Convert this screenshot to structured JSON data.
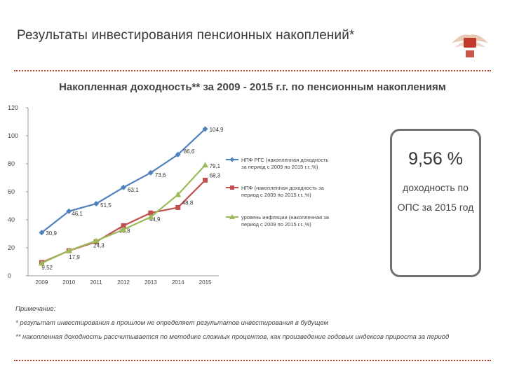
{
  "header": {
    "title": "Результаты инвестирования пенсионных накоплений*"
  },
  "chart_section": {
    "subtitle": "Накопленная доходность** за 2009 - 2015 г.г. по пенсионным накоплениям"
  },
  "callout": {
    "value": "9,56 %",
    "text": "доходность по ОПС за 2015 год"
  },
  "notes": {
    "heading": "Примечание:",
    "line1": "* результат инвестирования в прошлом не определяет результатов инвестирования в будущем",
    "line2": "** накопленная доходность рассчитывается по методике сложных процентов, как произведение годовых индексов прироста за период"
  },
  "colors": {
    "accent": "#c0392b",
    "series1": "#4f81bd",
    "series2": "#c0504d",
    "series3": "#9bbb59"
  },
  "chart_data": {
    "type": "line",
    "categories": [
      "2009",
      "2010",
      "2011",
      "2012",
      "2013",
      "2014",
      "2015"
    ],
    "ylim": [
      0,
      120
    ],
    "yticks": [
      "0",
      "20",
      "40",
      "60",
      "80",
      "100",
      "120"
    ],
    "grid": false,
    "legend_position": "right",
    "series": [
      {
        "name": "НПФ РГС (накопленная доходность за период с 2009 по 2015 г.г.,%)",
        "color": "#4f81bd",
        "marker": "diamond",
        "values": [
          30.9,
          46.1,
          51.5,
          63.1,
          73.6,
          86.6,
          104.9
        ],
        "labels": [
          "30,9",
          "46,1",
          "51,5",
          "63,1",
          "73,6",
          "86,6",
          "104,9"
        ]
      },
      {
        "name": "НПФ (накопленная доходность за период с 2009 по 2015 г.г.,%)",
        "color": "#c0504d",
        "marker": "square",
        "values": [
          9.52,
          17.9,
          24.3,
          35.8,
          44.9,
          48.8,
          68.3
        ],
        "labels": [
          "9,52",
          "17,9",
          "24,3",
          "35,8",
          "44,9",
          "48,8",
          "68,3"
        ]
      },
      {
        "name": "уровень инфляции (накопленная за период с 2009 по 2015 г.г.,%)",
        "color": "#9bbb59",
        "marker": "triangle",
        "values": [
          9.0,
          18.0,
          25.0,
          33.0,
          42.0,
          58.0,
          79.1
        ],
        "labels": [
          "",
          "",
          "",
          "",
          "",
          "",
          "79,1"
        ]
      }
    ]
  }
}
